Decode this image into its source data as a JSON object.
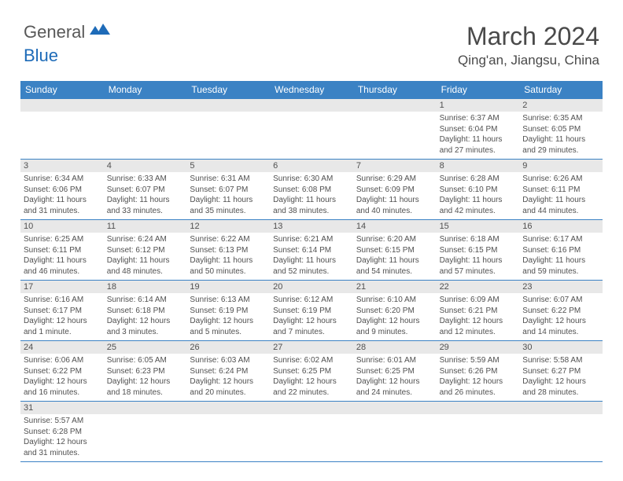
{
  "logo": {
    "part1": "General",
    "part2": "Blue"
  },
  "title": "March 2024",
  "location": "Qing'an, Jiangsu, China",
  "colors": {
    "header_bg": "#3b82c4",
    "daynum_bg": "#e8e8e8",
    "border": "#3b82c4",
    "text": "#505050",
    "title": "#4a4a4a",
    "logo_gray": "#585858",
    "logo_blue": "#1e6bb8"
  },
  "day_names": [
    "Sunday",
    "Monday",
    "Tuesday",
    "Wednesday",
    "Thursday",
    "Friday",
    "Saturday"
  ],
  "weeks": [
    [
      null,
      null,
      null,
      null,
      null,
      {
        "n": "1",
        "sr": "6:37 AM",
        "ss": "6:04 PM",
        "dl": "11 hours and 27 minutes."
      },
      {
        "n": "2",
        "sr": "6:35 AM",
        "ss": "6:05 PM",
        "dl": "11 hours and 29 minutes."
      }
    ],
    [
      {
        "n": "3",
        "sr": "6:34 AM",
        "ss": "6:06 PM",
        "dl": "11 hours and 31 minutes."
      },
      {
        "n": "4",
        "sr": "6:33 AM",
        "ss": "6:07 PM",
        "dl": "11 hours and 33 minutes."
      },
      {
        "n": "5",
        "sr": "6:31 AM",
        "ss": "6:07 PM",
        "dl": "11 hours and 35 minutes."
      },
      {
        "n": "6",
        "sr": "6:30 AM",
        "ss": "6:08 PM",
        "dl": "11 hours and 38 minutes."
      },
      {
        "n": "7",
        "sr": "6:29 AM",
        "ss": "6:09 PM",
        "dl": "11 hours and 40 minutes."
      },
      {
        "n": "8",
        "sr": "6:28 AM",
        "ss": "6:10 PM",
        "dl": "11 hours and 42 minutes."
      },
      {
        "n": "9",
        "sr": "6:26 AM",
        "ss": "6:11 PM",
        "dl": "11 hours and 44 minutes."
      }
    ],
    [
      {
        "n": "10",
        "sr": "6:25 AM",
        "ss": "6:11 PM",
        "dl": "11 hours and 46 minutes."
      },
      {
        "n": "11",
        "sr": "6:24 AM",
        "ss": "6:12 PM",
        "dl": "11 hours and 48 minutes."
      },
      {
        "n": "12",
        "sr": "6:22 AM",
        "ss": "6:13 PM",
        "dl": "11 hours and 50 minutes."
      },
      {
        "n": "13",
        "sr": "6:21 AM",
        "ss": "6:14 PM",
        "dl": "11 hours and 52 minutes."
      },
      {
        "n": "14",
        "sr": "6:20 AM",
        "ss": "6:15 PM",
        "dl": "11 hours and 54 minutes."
      },
      {
        "n": "15",
        "sr": "6:18 AM",
        "ss": "6:15 PM",
        "dl": "11 hours and 57 minutes."
      },
      {
        "n": "16",
        "sr": "6:17 AM",
        "ss": "6:16 PM",
        "dl": "11 hours and 59 minutes."
      }
    ],
    [
      {
        "n": "17",
        "sr": "6:16 AM",
        "ss": "6:17 PM",
        "dl": "12 hours and 1 minute."
      },
      {
        "n": "18",
        "sr": "6:14 AM",
        "ss": "6:18 PM",
        "dl": "12 hours and 3 minutes."
      },
      {
        "n": "19",
        "sr": "6:13 AM",
        "ss": "6:19 PM",
        "dl": "12 hours and 5 minutes."
      },
      {
        "n": "20",
        "sr": "6:12 AM",
        "ss": "6:19 PM",
        "dl": "12 hours and 7 minutes."
      },
      {
        "n": "21",
        "sr": "6:10 AM",
        "ss": "6:20 PM",
        "dl": "12 hours and 9 minutes."
      },
      {
        "n": "22",
        "sr": "6:09 AM",
        "ss": "6:21 PM",
        "dl": "12 hours and 12 minutes."
      },
      {
        "n": "23",
        "sr": "6:07 AM",
        "ss": "6:22 PM",
        "dl": "12 hours and 14 minutes."
      }
    ],
    [
      {
        "n": "24",
        "sr": "6:06 AM",
        "ss": "6:22 PM",
        "dl": "12 hours and 16 minutes."
      },
      {
        "n": "25",
        "sr": "6:05 AM",
        "ss": "6:23 PM",
        "dl": "12 hours and 18 minutes."
      },
      {
        "n": "26",
        "sr": "6:03 AM",
        "ss": "6:24 PM",
        "dl": "12 hours and 20 minutes."
      },
      {
        "n": "27",
        "sr": "6:02 AM",
        "ss": "6:25 PM",
        "dl": "12 hours and 22 minutes."
      },
      {
        "n": "28",
        "sr": "6:01 AM",
        "ss": "6:25 PM",
        "dl": "12 hours and 24 minutes."
      },
      {
        "n": "29",
        "sr": "5:59 AM",
        "ss": "6:26 PM",
        "dl": "12 hours and 26 minutes."
      },
      {
        "n": "30",
        "sr": "5:58 AM",
        "ss": "6:27 PM",
        "dl": "12 hours and 28 minutes."
      }
    ],
    [
      {
        "n": "31",
        "sr": "5:57 AM",
        "ss": "6:28 PM",
        "dl": "12 hours and 31 minutes."
      },
      null,
      null,
      null,
      null,
      null,
      null
    ]
  ],
  "labels": {
    "sunrise": "Sunrise:",
    "sunset": "Sunset:",
    "daylight": "Daylight:"
  }
}
